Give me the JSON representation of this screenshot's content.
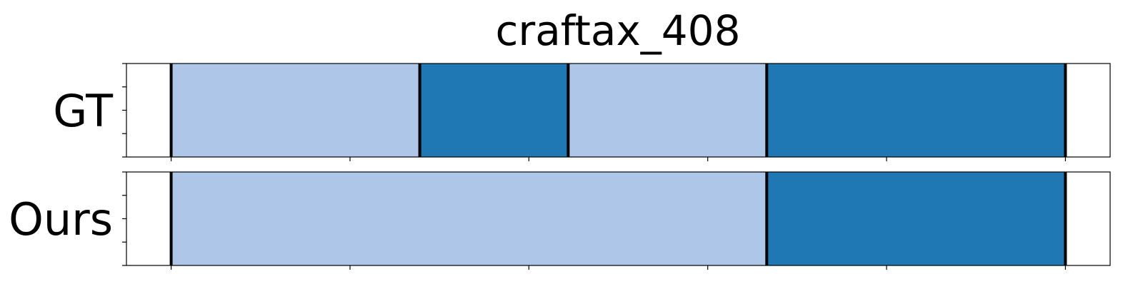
{
  "chart_data": {
    "type": "segmentation-timeline",
    "title": "craftax_408",
    "xlim": [
      -0.25,
      5.25
    ],
    "xticks": [
      0,
      1,
      2,
      3,
      4,
      5
    ],
    "show_tick_labels": false,
    "rows": [
      {
        "label": "GT",
        "segments": [
          {
            "start": 0.0,
            "end": 1.39,
            "class": "light"
          },
          {
            "start": 1.39,
            "end": 2.22,
            "class": "dark"
          },
          {
            "start": 2.22,
            "end": 3.33,
            "class": "light"
          },
          {
            "start": 3.33,
            "end": 5.0,
            "class": "dark"
          }
        ],
        "boundaries": [
          0.0,
          1.39,
          2.22,
          3.33,
          5.0
        ]
      },
      {
        "label": "Ours",
        "segments": [
          {
            "start": 0.0,
            "end": 3.33,
            "class": "light"
          },
          {
            "start": 3.33,
            "end": 5.0,
            "class": "dark"
          }
        ],
        "boundaries": [
          0.0,
          3.33,
          5.0
        ]
      }
    ],
    "colors": {
      "light": "#aec7e8",
      "dark": "#1f77b4",
      "boundary": "#000000",
      "frame": "#000000"
    }
  }
}
